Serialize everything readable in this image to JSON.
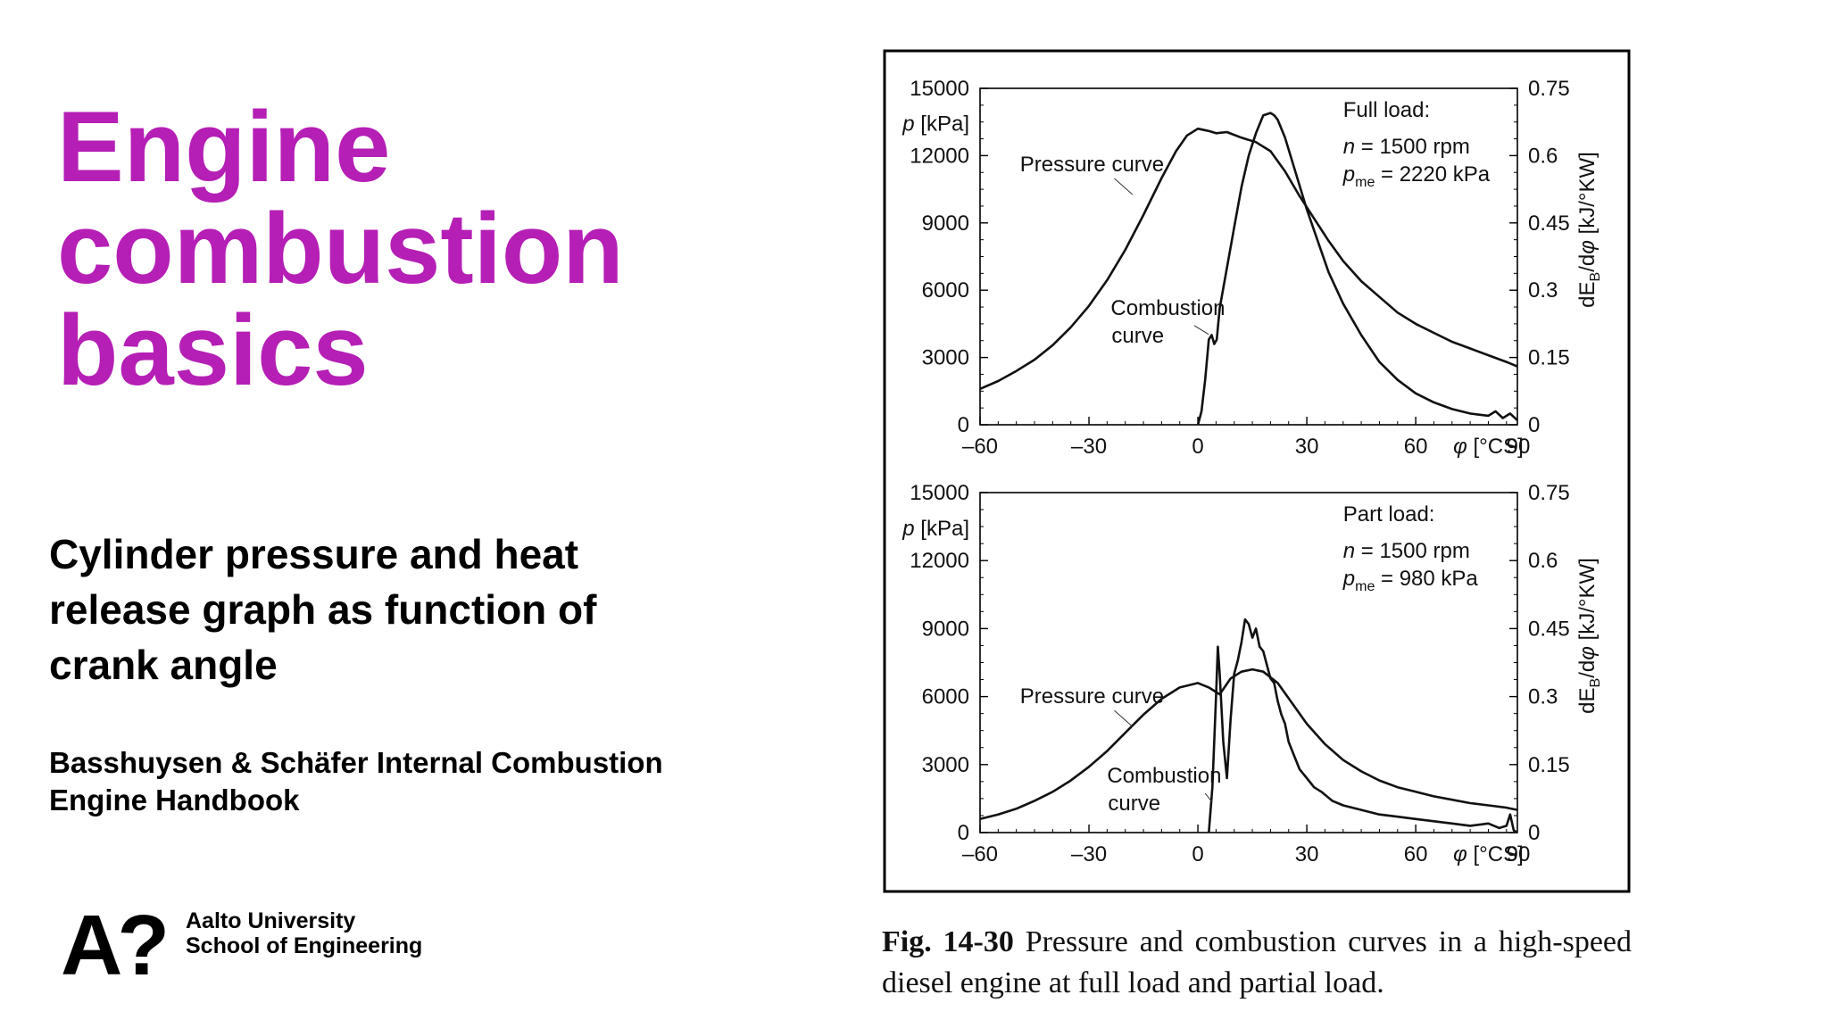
{
  "slide": {
    "title_lines": [
      "Engine",
      "combustion",
      "basics"
    ],
    "subtitle_lines": [
      "Cylinder pressure and heat",
      "release graph as function of",
      "crank angle"
    ],
    "reference_lines": [
      "Basshuysen & Schäfer Internal Combustion",
      "Engine Handbook"
    ],
    "title_color": "#b51fb5"
  },
  "logo": {
    "mark": "A?",
    "line1": "Aalto University",
    "line2": "School of Engineering"
  },
  "caption": {
    "figure_number": "Fig. 14-30",
    "text": "Pressure and combustion curves in a high-speed diesel engine at full load and partial load."
  },
  "chart_data": [
    {
      "type": "line",
      "x_ticks": [
        "–60",
        "–30",
        "0",
        "30",
        "60"
      ],
      "x_end_label": "90",
      "x_unit_label": "φ [°CS]",
      "y_left_ticks": [
        "0",
        "3000",
        "6000",
        "9000",
        "12000",
        "15000"
      ],
      "y_left_label": "p [kPa]",
      "y_right_ticks": [
        "0",
        "0.15",
        "0.3",
        "0.45",
        "0.6",
        "0.75"
      ],
      "y_right_label": "dE_B/dφ [kJ/°KW]",
      "xlim": [
        -60,
        88
      ],
      "ylim_left": [
        0,
        15000
      ],
      "ylim_right": [
        0,
        0.75
      ],
      "annotation": {
        "heading": "Full load:",
        "line1_var": "n",
        "line1_value": " = 1500 rpm",
        "line2_var": "p",
        "line2_sub": "me",
        "line2_value": " = 2220 kPa"
      },
      "labels": {
        "pressure": "Pressure curve",
        "combustion_1": "Combustion",
        "combustion_2": "curve"
      },
      "series": [
        {
          "x": [
            -60,
            -55,
            -50,
            -45,
            -40,
            -35,
            -30,
            -25,
            -20,
            -15,
            -10,
            -6,
            -3,
            0,
            3,
            5,
            8,
            12,
            16,
            20,
            24,
            28,
            32,
            36,
            40,
            45,
            50,
            55,
            60,
            65,
            70,
            75,
            80,
            85,
            88
          ],
          "values": [
            1600,
            1950,
            2400,
            2900,
            3550,
            4350,
            5300,
            6450,
            7800,
            9350,
            11000,
            12200,
            12900,
            13200,
            13100,
            13000,
            13050,
            12800,
            12600,
            12200,
            11300,
            10200,
            9200,
            8200,
            7300,
            6400,
            5700,
            5000,
            4500,
            4100,
            3700,
            3400,
            3100,
            2800,
            2600
          ]
        },
        {
          "x": [
            0,
            1,
            2,
            3,
            3.8,
            4.5,
            5.2,
            6,
            8,
            10,
            12,
            14,
            16,
            18,
            20,
            21,
            22,
            24,
            27,
            30,
            33,
            36,
            40,
            45,
            50,
            55,
            60,
            65,
            70,
            75,
            80,
            82,
            84,
            86,
            88
          ],
          "values": [
            0,
            0.03,
            0.1,
            0.19,
            0.2,
            0.18,
            0.19,
            0.26,
            0.35,
            0.44,
            0.53,
            0.6,
            0.65,
            0.69,
            0.695,
            0.69,
            0.68,
            0.64,
            0.56,
            0.48,
            0.41,
            0.34,
            0.27,
            0.2,
            0.14,
            0.1,
            0.07,
            0.05,
            0.035,
            0.025,
            0.02,
            0.03,
            0.015,
            0.025,
            0.01
          ]
        }
      ]
    },
    {
      "type": "line",
      "x_ticks": [
        "–60",
        "–30",
        "0",
        "30",
        "60"
      ],
      "x_end_label": "90",
      "x_unit_label": "φ [°CS]",
      "y_left_ticks": [
        "0",
        "3000",
        "6000",
        "9000",
        "12000",
        "15000"
      ],
      "y_left_label": "p [kPa]",
      "y_right_ticks": [
        "0",
        "0.15",
        "0.3",
        "0.45",
        "0.6",
        "0.75"
      ],
      "y_right_label": "dE_B/dφ [kJ/°KW]",
      "xlim": [
        -60,
        88
      ],
      "ylim_left": [
        0,
        15000
      ],
      "ylim_right": [
        0,
        0.75
      ],
      "annotation": {
        "heading": "Part load:",
        "line1_var": "n",
        "line1_value": " = 1500 rpm",
        "line2_var": "p",
        "line2_sub": "me",
        "line2_value": " = 980 kPa"
      },
      "labels": {
        "pressure": "Pressure curve",
        "combustion_1": "Combustion",
        "combustion_2": "curve"
      },
      "series": [
        {
          "x": [
            -60,
            -55,
            -50,
            -45,
            -40,
            -35,
            -30,
            -25,
            -20,
            -15,
            -10,
            -5,
            0,
            3,
            6,
            9,
            12,
            15,
            18,
            22,
            26,
            30,
            35,
            40,
            45,
            50,
            55,
            60,
            65,
            70,
            75,
            80,
            85,
            88
          ],
          "values": [
            600,
            800,
            1050,
            1400,
            1800,
            2300,
            2900,
            3600,
            4400,
            5200,
            5900,
            6400,
            6600,
            6400,
            6100,
            6800,
            7100,
            7200,
            7100,
            6600,
            5700,
            4800,
            3900,
            3200,
            2700,
            2300,
            2000,
            1800,
            1600,
            1450,
            1300,
            1200,
            1100,
            1000
          ]
        },
        {
          "x": [
            3,
            4,
            5,
            5.5,
            6,
            7,
            8,
            9,
            10,
            11,
            12,
            13,
            14,
            15,
            16,
            17,
            18,
            19,
            20,
            21,
            22,
            23,
            24,
            25,
            26,
            28,
            30,
            32,
            34,
            37,
            40,
            45,
            50,
            55,
            60,
            65,
            70,
            75,
            80,
            83,
            85,
            86,
            87,
            88
          ],
          "values": [
            0,
            0.1,
            0.3,
            0.41,
            0.35,
            0.2,
            0.12,
            0.25,
            0.35,
            0.38,
            0.42,
            0.47,
            0.46,
            0.43,
            0.45,
            0.41,
            0.4,
            0.37,
            0.34,
            0.33,
            0.29,
            0.26,
            0.24,
            0.2,
            0.18,
            0.14,
            0.12,
            0.1,
            0.09,
            0.07,
            0.06,
            0.05,
            0.04,
            0.035,
            0.03,
            0.025,
            0.02,
            0.015,
            0.02,
            0.01,
            0.015,
            0.04,
            0.005,
            0
          ]
        }
      ]
    }
  ]
}
